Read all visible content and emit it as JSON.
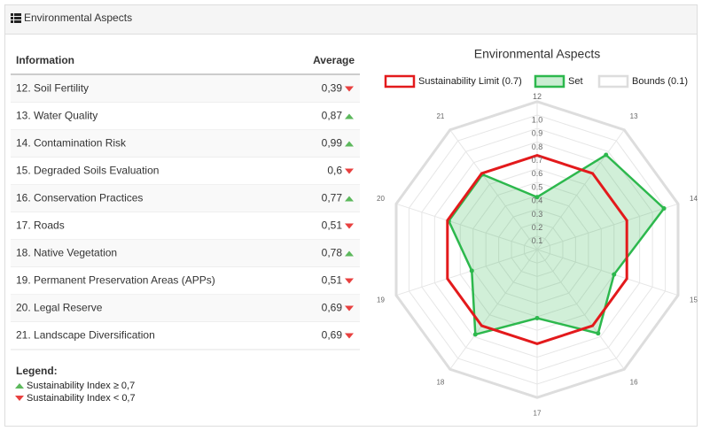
{
  "header": {
    "title": "Environmental Aspects"
  },
  "table": {
    "columns": [
      "Information",
      "Average"
    ],
    "rows": [
      {
        "label": "12. Soil Fertility",
        "average": "0,39",
        "trend": "down"
      },
      {
        "label": "13. Water Quality",
        "average": "0,87",
        "trend": "up"
      },
      {
        "label": "14. Contamination Risk",
        "average": "0,99",
        "trend": "up"
      },
      {
        "label": "15. Degraded Soils Evaluation",
        "average": "0,6",
        "trend": "down"
      },
      {
        "label": "16. Conservation Practices",
        "average": "0,77",
        "trend": "up"
      },
      {
        "label": "17. Roads",
        "average": "0,51",
        "trend": "down"
      },
      {
        "label": "18. Native Vegetation",
        "average": "0,78",
        "trend": "up"
      },
      {
        "label": "19. Permanent Preservation Areas (APPs)",
        "average": "0,51",
        "trend": "down"
      },
      {
        "label": "20. Legal Reserve",
        "average": "0,69",
        "trend": "down"
      },
      {
        "label": "21. Landscape Diversification",
        "average": "0,69",
        "trend": "down"
      }
    ]
  },
  "legend": {
    "title": "Legend:",
    "items": [
      {
        "label": "Sustainability Index ≥ 0,7",
        "trend": "up"
      },
      {
        "label": "Sustainability Index < 0,7",
        "trend": "down"
      }
    ]
  },
  "chart_data": {
    "type": "radar",
    "title": "Environmental Aspects",
    "categories": [
      "12",
      "13",
      "14",
      "15",
      "16",
      "17",
      "18",
      "19",
      "20",
      "21"
    ],
    "rlim": [
      0,
      1.1
    ],
    "rticks": [
      0.1,
      0.2,
      0.3,
      0.4,
      0.5,
      0.6,
      0.7,
      0.8,
      0.9,
      {
        "value": 1,
        "label": "1.0"
      }
    ],
    "series": [
      {
        "name": "Sustainability Limit (0.7)",
        "color": "#e31a1c",
        "fill": false,
        "values": [
          0.7,
          0.7,
          0.7,
          0.7,
          0.7,
          0.7,
          0.7,
          0.7,
          0.7,
          0.7
        ]
      },
      {
        "name": "Set",
        "color": "#2db84d",
        "fill": true,
        "values": [
          0.39,
          0.87,
          0.99,
          0.6,
          0.77,
          0.51,
          0.78,
          0.51,
          0.69,
          0.69
        ]
      },
      {
        "name": "Bounds (0.1)",
        "color": "#dddddd",
        "fill": false,
        "values": [
          1.1,
          1.1,
          1.1,
          1.1,
          1.1,
          1.1,
          1.1,
          1.1,
          1.1,
          1.1
        ]
      }
    ]
  }
}
